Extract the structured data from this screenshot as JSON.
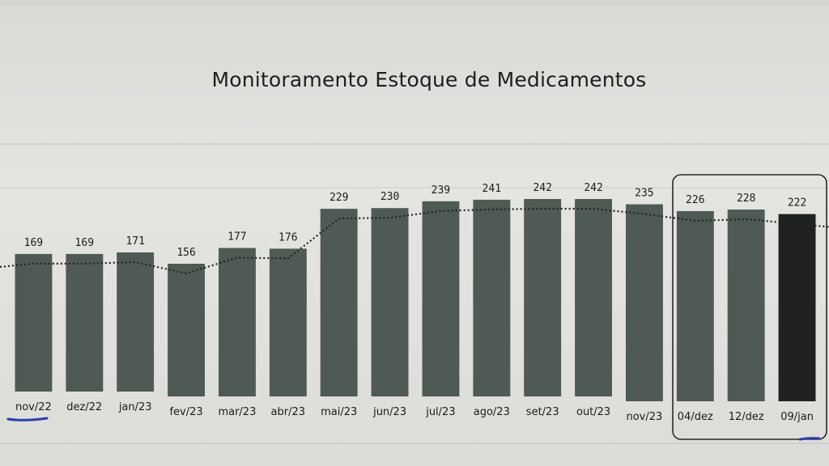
{
  "chart_data": {
    "type": "bar",
    "title": "Monitoramento Estoque de Medicamentos",
    "xlabel": "",
    "ylabel": "",
    "ylim": [
      0,
      250
    ],
    "categories": [
      "nov/22",
      "dez/22",
      "jan/23",
      "fev/23",
      "mar/23",
      "abr/23",
      "mai/23",
      "jun/23",
      "jul/23",
      "ago/23",
      "set/23",
      "out/23",
      "nov/23",
      "04/dez",
      "12/dez",
      "09/jan"
    ],
    "values": [
      169,
      169,
      171,
      156,
      177,
      176,
      229,
      230,
      239,
      241,
      242,
      242,
      235,
      226,
      228,
      222
    ],
    "trendline": "dotted",
    "highlighted_categories": [
      "04/dez",
      "12/dez",
      "09/jan"
    ],
    "colors": {
      "bar": "#505a54",
      "bar_last": "#1f2220",
      "trend": "#222222",
      "highlight_box": "#2a2a2a",
      "pen_mark": "#2b3fa8"
    },
    "grid": false,
    "legend": "none"
  }
}
